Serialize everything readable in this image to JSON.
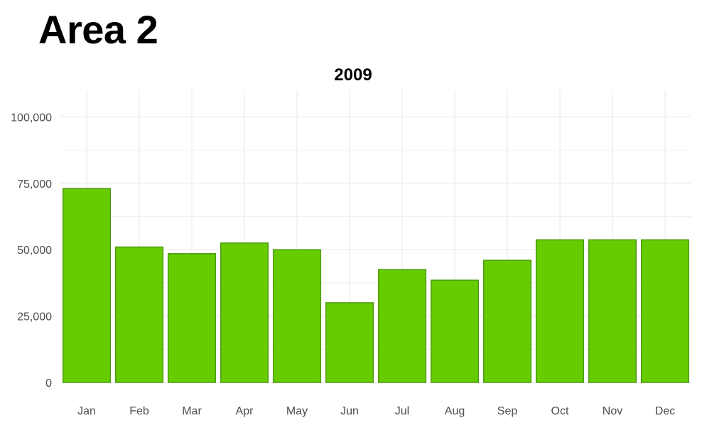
{
  "page": {
    "heading": "Area 2"
  },
  "colors": {
    "bar_fill": "#66cc00",
    "bar_stroke": "#4f9a10",
    "grid": "#ebebeb"
  },
  "chart_data": {
    "type": "bar",
    "title": "2009",
    "xlabel": "",
    "ylabel": "",
    "categories": [
      "Jan",
      "Feb",
      "Mar",
      "Apr",
      "May",
      "Jun",
      "Jul",
      "Aug",
      "Sep",
      "Oct",
      "Nov",
      "Dec"
    ],
    "values": [
      73000,
      51000,
      48500,
      52500,
      50000,
      30000,
      42500,
      38500,
      46000,
      53700,
      53700,
      53700
    ],
    "ylim": [
      0,
      110000
    ],
    "yticks": [
      0,
      25000,
      50000,
      75000,
      100000
    ],
    "ytick_labels": [
      "0",
      "25,000",
      "50,000",
      "75,000",
      "100,000"
    ],
    "grid": true,
    "legend": "none"
  }
}
